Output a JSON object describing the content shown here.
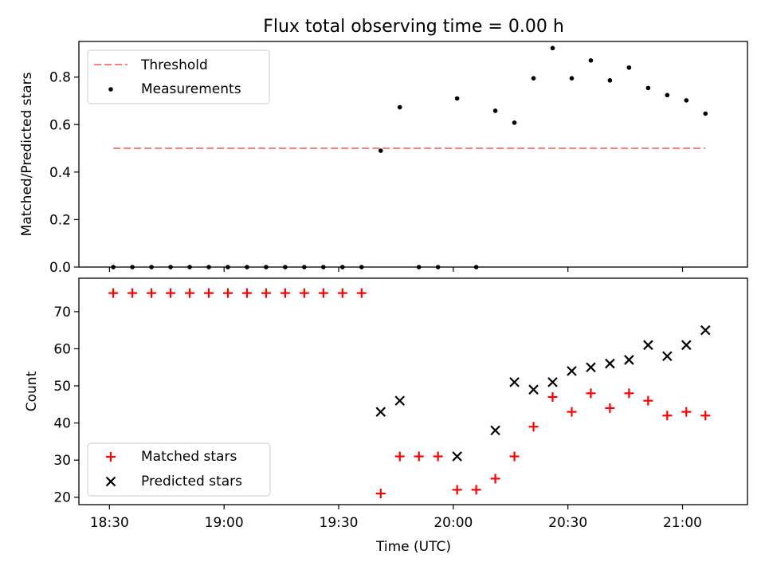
{
  "chart_data": [
    {
      "type": "scatter",
      "title": "Flux total observing time = 0.00 h",
      "xlabel": "",
      "ylabel": "Matched/Predicted stars",
      "ylim": [
        0,
        0.95
      ],
      "yticks": [
        "0.0",
        "0.2",
        "0.4",
        "0.6",
        "0.8"
      ],
      "threshold": {
        "name": "Threshold",
        "value": 0.5,
        "x_start": "18:31",
        "x_end": "21:06",
        "color": "#ff7f7f"
      },
      "legend_position": "upper left",
      "series": [
        {
          "name": "Measurements",
          "color": "#000000",
          "x": [
            "18:31",
            "18:36",
            "18:41",
            "18:46",
            "18:51",
            "18:56",
            "19:01",
            "19:06",
            "19:11",
            "19:16",
            "19:21",
            "19:26",
            "19:31",
            "19:36",
            "19:41",
            "19:46",
            "19:51",
            "19:56",
            "20:01",
            "20:06",
            "20:11",
            "20:16",
            "20:21",
            "20:26",
            "20:31",
            "20:36",
            "20:41",
            "20:46",
            "20:51",
            "20:56",
            "21:01",
            "21:06"
          ],
          "values": [
            0,
            0,
            0,
            0,
            0,
            0,
            0,
            0,
            0,
            0,
            0,
            0,
            0,
            0,
            0.49,
            0.673,
            0,
            0,
            0.71,
            0,
            0.658,
            0.608,
            0.795,
            0.922,
            0.795,
            0.87,
            0.786,
            0.84,
            0.754,
            0.724,
            0.702,
            0.646
          ]
        }
      ]
    },
    {
      "type": "scatter",
      "xlabel": "Time (UTC)",
      "ylabel": "Count",
      "ylim": [
        18,
        79
      ],
      "yticks": [
        "20",
        "30",
        "40",
        "50",
        "60",
        "70"
      ],
      "xticks": [
        "18:30",
        "19:00",
        "19:30",
        "20:00",
        "20:30",
        "21:00"
      ],
      "legend_position": "lower left",
      "series": [
        {
          "name": "Matched stars",
          "marker": "plus",
          "color": "#ff0000",
          "x": [
            "18:31",
            "18:36",
            "18:41",
            "18:46",
            "18:51",
            "18:56",
            "19:01",
            "19:06",
            "19:11",
            "19:16",
            "19:21",
            "19:26",
            "19:31",
            "19:36",
            "19:41",
            "19:46",
            "19:51",
            "19:56",
            "20:01",
            "20:06",
            "20:11",
            "20:16",
            "20:21",
            "20:26",
            "20:31",
            "20:36",
            "20:41",
            "20:46",
            "20:51",
            "20:56",
            "21:01",
            "21:06"
          ],
          "values": [
            75,
            75,
            75,
            75,
            75,
            75,
            75,
            75,
            75,
            75,
            75,
            75,
            75,
            75,
            21,
            31,
            31,
            31,
            22,
            22,
            25,
            31,
            39,
            47,
            43,
            48,
            44,
            48,
            46,
            42,
            43,
            42
          ]
        },
        {
          "name": "Predicted stars",
          "marker": "x",
          "color": "#000000",
          "x": [
            "19:41",
            "19:46",
            "20:01",
            "20:11",
            "20:16",
            "20:21",
            "20:26",
            "20:31",
            "20:36",
            "20:41",
            "20:46",
            "20:51",
            "20:56",
            "21:01",
            "21:06"
          ],
          "values": [
            43,
            46,
            31,
            38,
            51,
            49,
            51,
            54,
            55,
            56,
            57,
            61,
            58,
            61,
            65
          ]
        }
      ]
    }
  ]
}
